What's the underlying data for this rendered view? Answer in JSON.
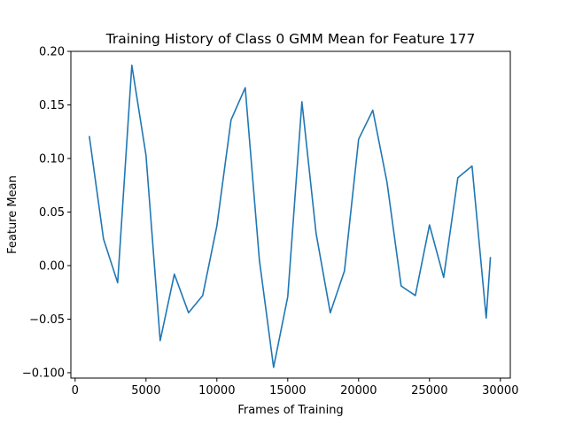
{
  "chart_data": {
    "type": "line",
    "title": "Training History of Class 0 GMM Mean for Feature 177",
    "xlabel": "Frames of Training",
    "ylabel": "Feature Mean",
    "xlim": [
      -300,
      30700
    ],
    "ylim": [
      -0.105,
      0.2
    ],
    "xticks": [
      0,
      5000,
      10000,
      15000,
      20000,
      25000,
      30000
    ],
    "xtick_labels": [
      "0",
      "5000",
      "10000",
      "15000",
      "20000",
      "25000",
      "30000"
    ],
    "yticks": [
      -0.1,
      -0.05,
      0.0,
      0.05,
      0.1,
      0.15,
      0.2
    ],
    "ytick_labels": [
      "−0.100",
      "−0.05",
      "0.00",
      "0.05",
      "0.10",
      "0.15",
      "0.20"
    ],
    "grid": false,
    "series": [
      {
        "color": "#1f77b4",
        "x": [
          1000,
          2000,
          3000,
          4000,
          5000,
          6000,
          7000,
          8000,
          9000,
          10000,
          11000,
          12000,
          13000,
          14000,
          15000,
          16000,
          17000,
          18000,
          19000,
          20000,
          21000,
          22000,
          23000,
          24000,
          25000,
          26000,
          27000,
          28000,
          29000,
          29300
        ],
        "y": [
          0.121,
          0.025,
          -0.016,
          0.187,
          0.103,
          -0.07,
          -0.008,
          -0.044,
          -0.028,
          0.037,
          0.136,
          0.166,
          0.005,
          -0.095,
          -0.029,
          0.153,
          0.03,
          -0.044,
          -0.005,
          0.118,
          0.145,
          0.078,
          -0.019,
          -0.028,
          0.038,
          -0.011,
          0.082,
          0.093,
          -0.049,
          0.008
        ]
      }
    ]
  }
}
